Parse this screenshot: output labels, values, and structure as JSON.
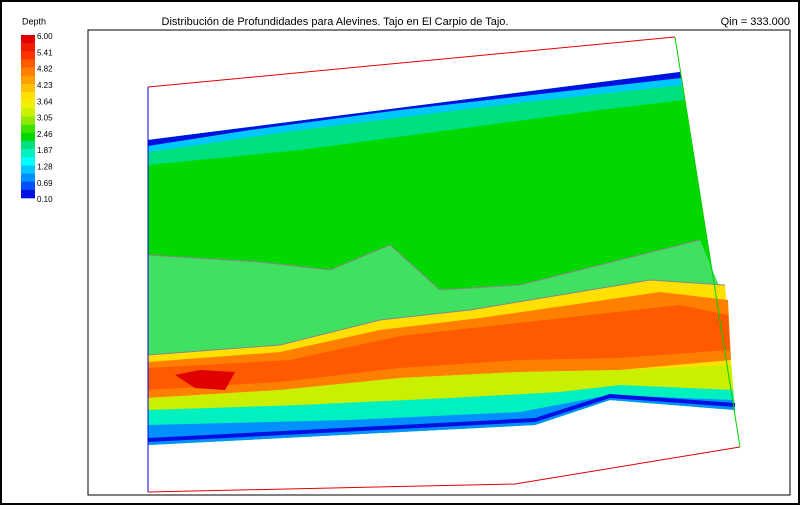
{
  "title": "Distribución de Profundidades para Alevines. Tajo en El Carpio de Tajo.",
  "qin": "Qin = 333.000",
  "legend": {
    "title": "Depth",
    "labels": [
      "6.00",
      "5.41",
      "4.82",
      "4.23",
      "3.64",
      "3.05",
      "2.46",
      "1.87",
      "1.28",
      "0.69",
      "0.10"
    ],
    "colors": [
      "#e00000",
      "#f01a00",
      "#ff3300",
      "#ff5a00",
      "#ff8000",
      "#ffa000",
      "#ffc000",
      "#ffe000",
      "#f0f000",
      "#c8f000",
      "#90e800",
      "#40e000",
      "#00d800",
      "#00e080",
      "#00f0c0",
      "#00ffff",
      "#00c8ff",
      "#0090ff",
      "#0050ff",
      "#0010e0"
    ]
  }
}
